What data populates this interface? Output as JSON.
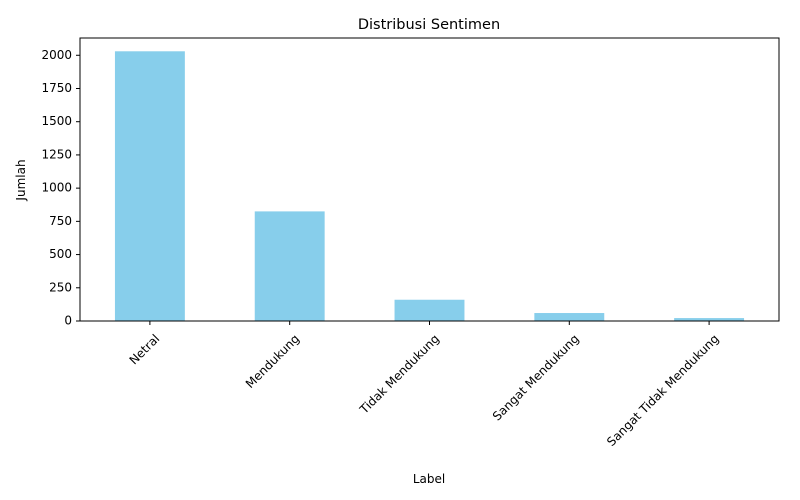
{
  "chart_data": {
    "type": "bar",
    "title": "Distribusi Sentimen",
    "xlabel": "Label",
    "ylabel": "Jumlah",
    "categories": [
      "Netral",
      "Mendukung",
      "Tidak Mendukung",
      "Sangat Mendukung",
      "Sangat Tidak Mendukung"
    ],
    "values": [
      2030,
      825,
      160,
      60,
      22
    ],
    "ylim": [
      0,
      2130
    ],
    "yticks": [
      0,
      250,
      500,
      750,
      1000,
      1250,
      1500,
      1750,
      2000
    ],
    "grid": false,
    "legend": "none",
    "bar_color": "#87ceeb"
  }
}
